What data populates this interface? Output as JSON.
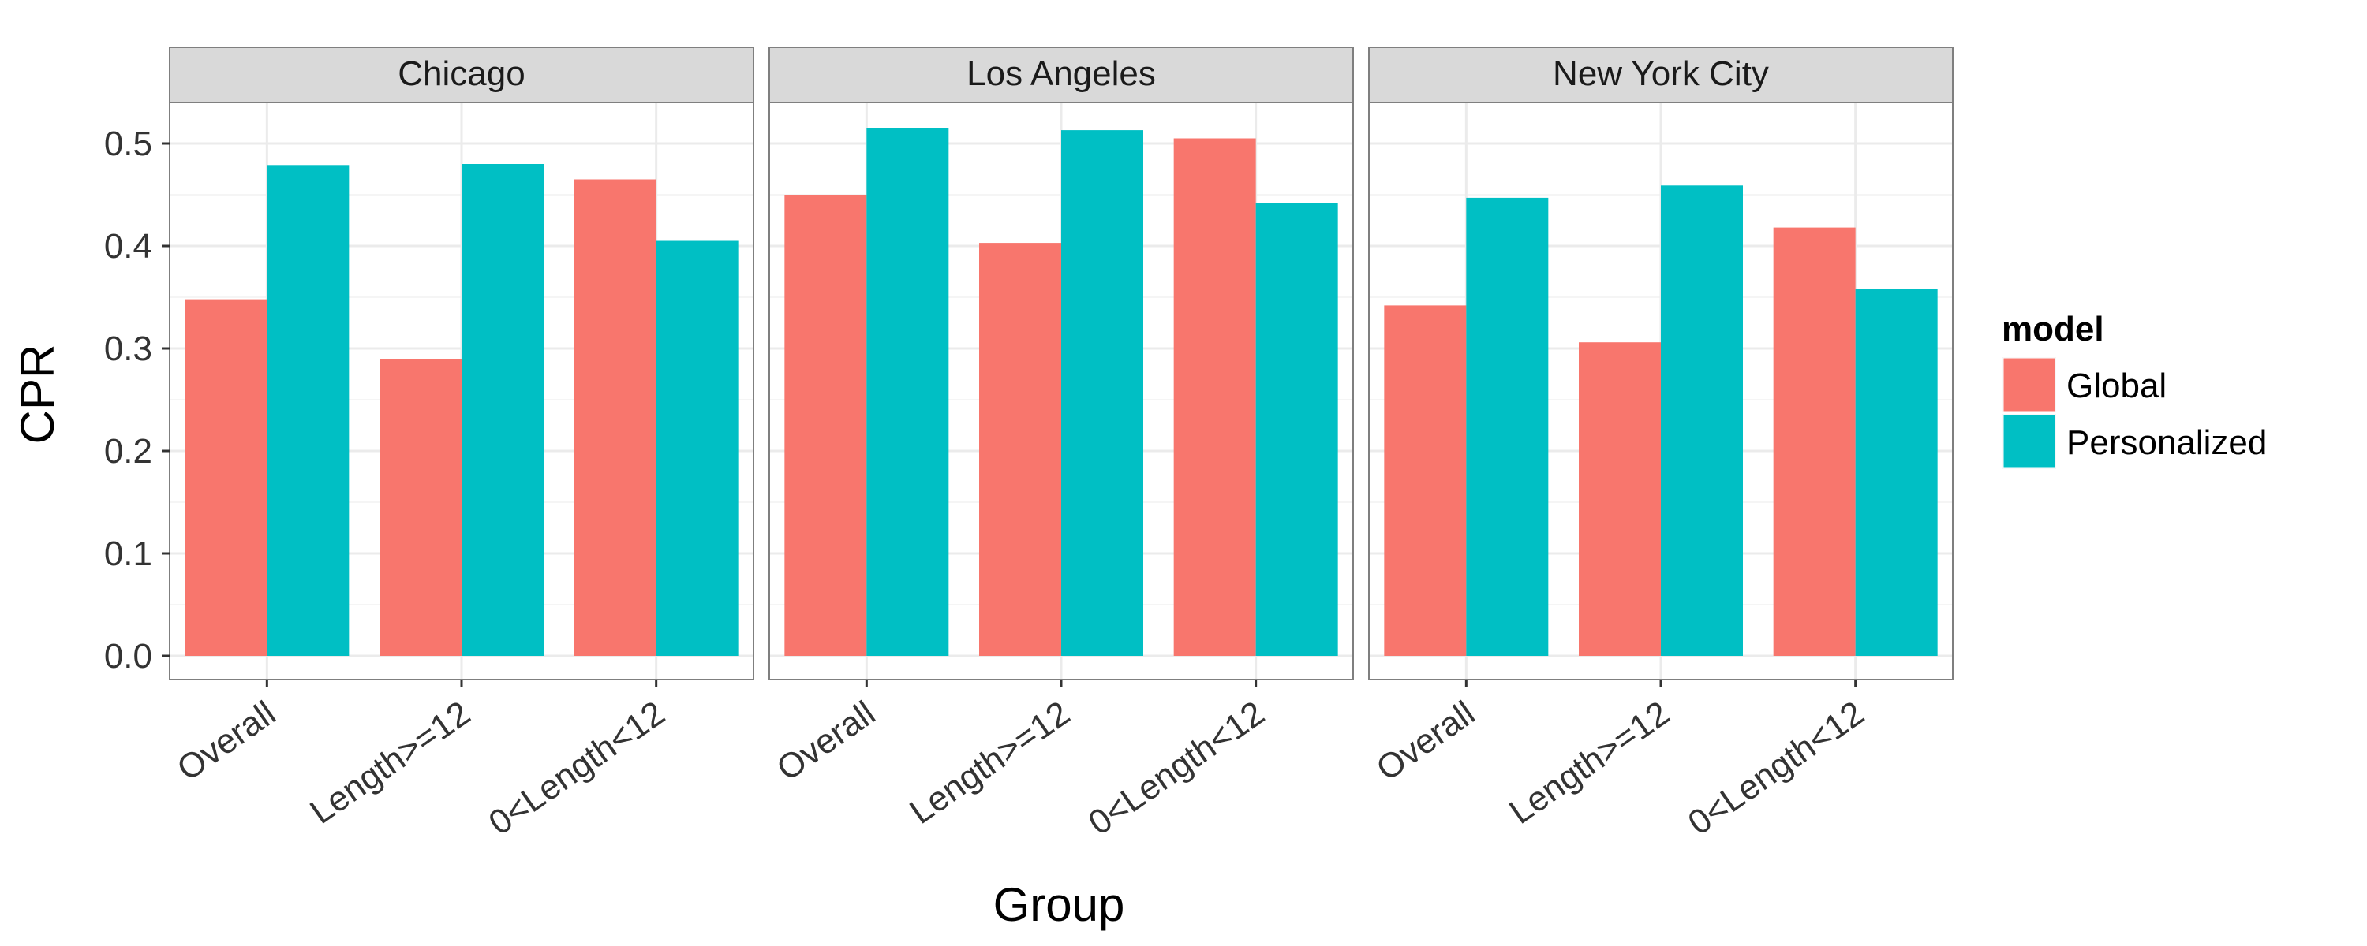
{
  "chart_data": {
    "type": "bar",
    "facet_variable": "city",
    "panels": [
      {
        "title": "Chicago",
        "series": [
          {
            "name": "Global",
            "values": [
              0.348,
              0.29,
              0.465
            ]
          },
          {
            "name": "Personalized",
            "values": [
              0.479,
              0.48,
              0.405
            ]
          }
        ]
      },
      {
        "title": "Los Angeles",
        "series": [
          {
            "name": "Global",
            "values": [
              0.45,
              0.403,
              0.505
            ]
          },
          {
            "name": "Personalized",
            "values": [
              0.515,
              0.513,
              0.442
            ]
          }
        ]
      },
      {
        "title": "New York City",
        "series": [
          {
            "name": "Global",
            "values": [
              0.342,
              0.306,
              0.418
            ]
          },
          {
            "name": "Personalized",
            "values": [
              0.447,
              0.459,
              0.358
            ]
          }
        ]
      }
    ],
    "categories": [
      "Overall",
      "Length>=12",
      "0<Length<12"
    ],
    "xlabel": "Group",
    "ylabel": "CPR",
    "ylim": [
      0,
      0.55
    ],
    "yticks": [
      0.0,
      0.1,
      0.2,
      0.3,
      0.4,
      0.5
    ],
    "ytick_labels": [
      "0.0",
      "0.1",
      "0.2",
      "0.3",
      "0.4",
      "0.5"
    ],
    "grid": true,
    "legend": {
      "title": "model",
      "placement": "right",
      "entries": [
        "Global",
        "Personalized"
      ]
    },
    "colors": {
      "Global": "#F8766D",
      "Personalized": "#00BFC4",
      "panel_strip": "#D9D9D9",
      "grid_major": "#EBEBEB",
      "grid_minor": "#F5F5F5",
      "panel_border": "#7F7F7F"
    }
  }
}
